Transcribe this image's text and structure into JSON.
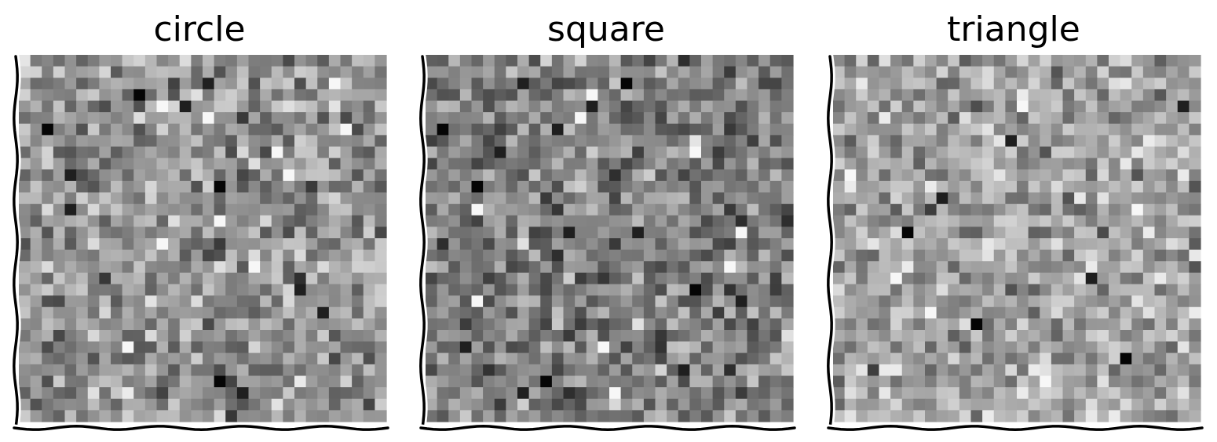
{
  "chart_data": [
    {
      "type": "heatmap",
      "title": "circle",
      "colormap": "gray",
      "grid_size": [
        32,
        32
      ],
      "xticks": [],
      "yticks": [],
      "style": "xkcd",
      "grid": false,
      "mean_intensity": 0.58,
      "dark_pixels_rowcol": [
        [
          3,
          10
        ],
        [
          4,
          14
        ],
        [
          2,
          16
        ],
        [
          6,
          2
        ],
        [
          10,
          4
        ],
        [
          13,
          4
        ],
        [
          11,
          17
        ],
        [
          20,
          24
        ],
        [
          22,
          26
        ],
        [
          28,
          17
        ],
        [
          29,
          19
        ]
      ],
      "light_pixels_rowcol": [
        [
          5,
          16
        ],
        [
          4,
          12
        ],
        [
          8,
          22
        ],
        [
          14,
          17
        ],
        [
          10,
          23
        ],
        [
          16,
          12
        ],
        [
          18,
          20
        ],
        [
          25,
          9
        ],
        [
          6,
          28
        ],
        [
          2,
          27
        ]
      ]
    },
    {
      "type": "heatmap",
      "title": "square",
      "colormap": "gray",
      "grid_size": [
        32,
        32
      ],
      "xticks": [],
      "yticks": [],
      "style": "xkcd",
      "grid": false,
      "mean_intensity": 0.5,
      "dark_pixels_rowcol": [
        [
          6,
          1
        ],
        [
          6,
          11
        ],
        [
          2,
          8
        ],
        [
          2,
          17
        ],
        [
          4,
          14
        ],
        [
          8,
          6
        ],
        [
          11,
          4
        ],
        [
          15,
          12
        ],
        [
          15,
          18
        ],
        [
          20,
          23
        ],
        [
          21,
          27
        ],
        [
          25,
          3
        ],
        [
          28,
          10
        ],
        [
          29,
          8
        ],
        [
          27,
          22
        ]
      ],
      "light_pixels_rowcol": [
        [
          5,
          13
        ],
        [
          8,
          23
        ],
        [
          13,
          4
        ],
        [
          15,
          27
        ],
        [
          21,
          4
        ],
        [
          25,
          15
        ],
        [
          29,
          16
        ],
        [
          3,
          14
        ],
        [
          18,
          26
        ]
      ]
    },
    {
      "type": "heatmap",
      "title": "triangle",
      "colormap": "gray",
      "grid_size": [
        32,
        32
      ],
      "xticks": [],
      "yticks": [],
      "style": "xkcd",
      "grid": false,
      "mean_intensity": 0.64,
      "dark_pixels_rowcol": [
        [
          26,
          25
        ],
        [
          19,
          22
        ],
        [
          7,
          15
        ],
        [
          15,
          6
        ],
        [
          12,
          9
        ],
        [
          4,
          30
        ],
        [
          23,
          12
        ]
      ],
      "light_pixels_rowcol": [
        [
          10,
          1
        ],
        [
          19,
          5
        ],
        [
          4,
          16
        ],
        [
          22,
          8
        ],
        [
          13,
          26
        ],
        [
          28,
          18
        ]
      ]
    }
  ],
  "colors": {
    "axis_line": "#000000",
    "axis_halo": "#ffffff",
    "background": "#ffffff"
  }
}
